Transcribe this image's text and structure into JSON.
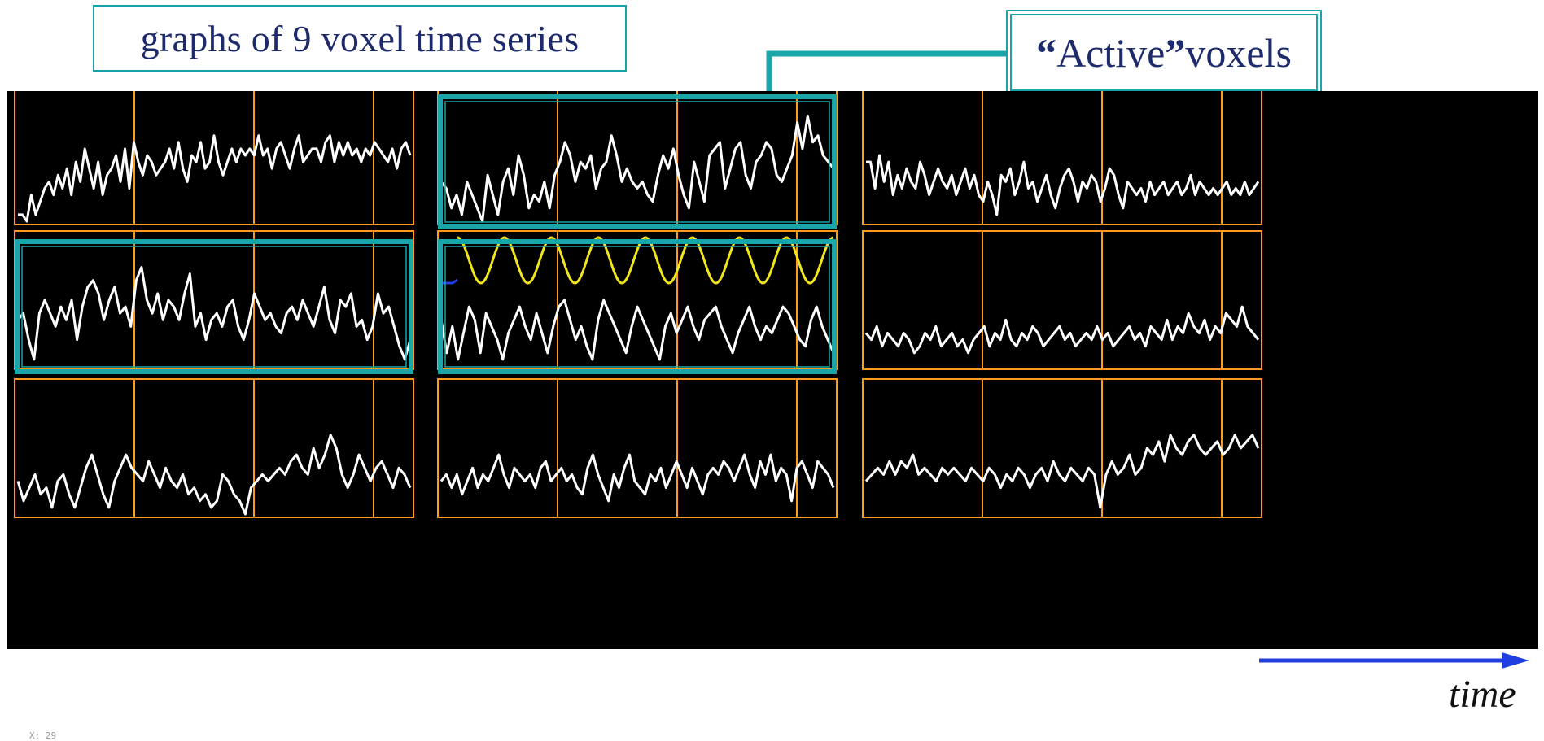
{
  "title": "graphs of 9 voxel time series",
  "active_label": {
    "open_quote": "“",
    "word": "Active",
    "close_quote": "”",
    "rest": " voxels"
  },
  "time_label": "time",
  "x_readout": "X: 29",
  "colors": {
    "panel_bg": "#000000",
    "frame": "#ff9a1e",
    "trace": "#ffffff",
    "highlight": "#1aa6a8",
    "reference": "#f2e61b",
    "time_arrow": "#1f3fe0",
    "title_text": "#1d2a6b"
  },
  "chart_data": {
    "type": "line",
    "grid": "3x3",
    "active_voxels": [
      "r0c1",
      "r1c0",
      "r1c1"
    ],
    "reference_signal": {
      "voxel": "r1c1",
      "shape": "sinusoid",
      "cycles": 8
    },
    "voxels": [
      {
        "id": "r0c0",
        "values": [
          0.05,
          0.05,
          0.0,
          0.2,
          0.05,
          0.15,
          0.25,
          0.3,
          0.2,
          0.35,
          0.25,
          0.4,
          0.2,
          0.45,
          0.3,
          0.55,
          0.4,
          0.25,
          0.45,
          0.2,
          0.35,
          0.4,
          0.5,
          0.3,
          0.55,
          0.25,
          0.6,
          0.45,
          0.35,
          0.5,
          0.45,
          0.35,
          0.4,
          0.45,
          0.55,
          0.4,
          0.6,
          0.4,
          0.3,
          0.5,
          0.45,
          0.6,
          0.4,
          0.45,
          0.65,
          0.45,
          0.35,
          0.45,
          0.55,
          0.45,
          0.55,
          0.5,
          0.55,
          0.5,
          0.65,
          0.5,
          0.55,
          0.4,
          0.55,
          0.6,
          0.5,
          0.4,
          0.55,
          0.65,
          0.45,
          0.5,
          0.55,
          0.55,
          0.45,
          0.6,
          0.65,
          0.45,
          0.6,
          0.5,
          0.6,
          0.5,
          0.55,
          0.45,
          0.55,
          0.5,
          0.6,
          0.55,
          0.5,
          0.45,
          0.55,
          0.4,
          0.55,
          0.6,
          0.5
        ]
      },
      {
        "id": "r0c1",
        "values": [
          0.3,
          0.25,
          0.1,
          0.2,
          0.05,
          0.3,
          0.2,
          0.1,
          0.0,
          0.35,
          0.2,
          0.05,
          0.3,
          0.4,
          0.2,
          0.5,
          0.35,
          0.1,
          0.2,
          0.15,
          0.3,
          0.1,
          0.35,
          0.45,
          0.6,
          0.5,
          0.3,
          0.45,
          0.4,
          0.5,
          0.25,
          0.4,
          0.45,
          0.65,
          0.5,
          0.3,
          0.4,
          0.3,
          0.25,
          0.3,
          0.2,
          0.15,
          0.35,
          0.5,
          0.4,
          0.55,
          0.35,
          0.2,
          0.1,
          0.45,
          0.3,
          0.15,
          0.5,
          0.55,
          0.6,
          0.25,
          0.4,
          0.55,
          0.6,
          0.35,
          0.25,
          0.45,
          0.5,
          0.6,
          0.55,
          0.35,
          0.3,
          0.4,
          0.5,
          0.75,
          0.55,
          0.8,
          0.6,
          0.65,
          0.5,
          0.45,
          0.4
        ]
      },
      {
        "id": "r0c2",
        "values": [
          0.45,
          0.45,
          0.25,
          0.5,
          0.3,
          0.45,
          0.2,
          0.35,
          0.25,
          0.4,
          0.3,
          0.25,
          0.45,
          0.35,
          0.2,
          0.3,
          0.4,
          0.3,
          0.25,
          0.35,
          0.2,
          0.3,
          0.4,
          0.25,
          0.35,
          0.2,
          0.15,
          0.3,
          0.2,
          0.05,
          0.35,
          0.3,
          0.4,
          0.2,
          0.3,
          0.45,
          0.25,
          0.3,
          0.15,
          0.25,
          0.35,
          0.2,
          0.1,
          0.25,
          0.35,
          0.4,
          0.3,
          0.15,
          0.3,
          0.25,
          0.35,
          0.3,
          0.15,
          0.25,
          0.4,
          0.35,
          0.2,
          0.1,
          0.3,
          0.25,
          0.2,
          0.25,
          0.15,
          0.3,
          0.2,
          0.25,
          0.3,
          0.2,
          0.25,
          0.3,
          0.2,
          0.25,
          0.35,
          0.2,
          0.3,
          0.25,
          0.2,
          0.25,
          0.2,
          0.25,
          0.3,
          0.2,
          0.25,
          0.2,
          0.3,
          0.2,
          0.25,
          0.3
        ]
      },
      {
        "id": "r1c0",
        "values": [
          0.35,
          0.4,
          0.2,
          0.05,
          0.4,
          0.5,
          0.4,
          0.3,
          0.45,
          0.35,
          0.5,
          0.2,
          0.45,
          0.6,
          0.65,
          0.55,
          0.35,
          0.5,
          0.6,
          0.4,
          0.45,
          0.3,
          0.65,
          0.75,
          0.5,
          0.4,
          0.55,
          0.35,
          0.5,
          0.45,
          0.35,
          0.55,
          0.7,
          0.3,
          0.4,
          0.2,
          0.35,
          0.4,
          0.3,
          0.45,
          0.5,
          0.3,
          0.2,
          0.35,
          0.55,
          0.45,
          0.35,
          0.4,
          0.3,
          0.25,
          0.4,
          0.45,
          0.35,
          0.5,
          0.4,
          0.3,
          0.45,
          0.6,
          0.35,
          0.25,
          0.5,
          0.45,
          0.55,
          0.3,
          0.35,
          0.2,
          0.3,
          0.55,
          0.4,
          0.45,
          0.3,
          0.15,
          0.05,
          0.2
        ]
      },
      {
        "id": "r1c1",
        "values": [
          0.35,
          0.1,
          0.3,
          0.05,
          0.25,
          0.45,
          0.35,
          0.1,
          0.4,
          0.3,
          0.2,
          0.05,
          0.25,
          0.35,
          0.45,
          0.3,
          0.2,
          0.4,
          0.25,
          0.1,
          0.3,
          0.45,
          0.5,
          0.35,
          0.2,
          0.3,
          0.15,
          0.05,
          0.35,
          0.5,
          0.4,
          0.3,
          0.2,
          0.1,
          0.3,
          0.45,
          0.35,
          0.25,
          0.15,
          0.05,
          0.3,
          0.4,
          0.25,
          0.35,
          0.45,
          0.3,
          0.2,
          0.35,
          0.4,
          0.45,
          0.3,
          0.2,
          0.1,
          0.25,
          0.35,
          0.45,
          0.3,
          0.2,
          0.3,
          0.25,
          0.35,
          0.45,
          0.4,
          0.3,
          0.2,
          0.15,
          0.35,
          0.45,
          0.3,
          0.2,
          0.1
        ]
      },
      {
        "id": "r1c2",
        "values": [
          0.25,
          0.2,
          0.3,
          0.15,
          0.25,
          0.2,
          0.15,
          0.25,
          0.2,
          0.1,
          0.15,
          0.25,
          0.2,
          0.3,
          0.15,
          0.2,
          0.25,
          0.15,
          0.2,
          0.1,
          0.2,
          0.25,
          0.3,
          0.15,
          0.25,
          0.2,
          0.35,
          0.2,
          0.15,
          0.25,
          0.2,
          0.3,
          0.25,
          0.15,
          0.2,
          0.25,
          0.3,
          0.2,
          0.25,
          0.15,
          0.2,
          0.25,
          0.2,
          0.3,
          0.2,
          0.25,
          0.15,
          0.2,
          0.25,
          0.3,
          0.2,
          0.25,
          0.15,
          0.3,
          0.25,
          0.2,
          0.35,
          0.2,
          0.3,
          0.25,
          0.4,
          0.3,
          0.25,
          0.35,
          0.2,
          0.3,
          0.25,
          0.4,
          0.35,
          0.3,
          0.45,
          0.3,
          0.25,
          0.2
        ]
      },
      {
        "id": "r2c0",
        "values": [
          0.25,
          0.1,
          0.2,
          0.3,
          0.15,
          0.2,
          0.05,
          0.25,
          0.3,
          0.15,
          0.05,
          0.2,
          0.35,
          0.45,
          0.3,
          0.15,
          0.05,
          0.25,
          0.35,
          0.45,
          0.35,
          0.3,
          0.25,
          0.4,
          0.3,
          0.2,
          0.35,
          0.25,
          0.2,
          0.3,
          0.15,
          0.2,
          0.1,
          0.15,
          0.05,
          0.1,
          0.3,
          0.25,
          0.15,
          0.1,
          0.0,
          0.2,
          0.25,
          0.3,
          0.25,
          0.3,
          0.35,
          0.3,
          0.4,
          0.45,
          0.35,
          0.3,
          0.5,
          0.35,
          0.45,
          0.6,
          0.5,
          0.3,
          0.2,
          0.3,
          0.45,
          0.35,
          0.25,
          0.35,
          0.4,
          0.3,
          0.2,
          0.35,
          0.3,
          0.2
        ]
      },
      {
        "id": "r2c1",
        "values": [
          0.25,
          0.3,
          0.2,
          0.3,
          0.15,
          0.25,
          0.35,
          0.2,
          0.3,
          0.25,
          0.35,
          0.45,
          0.3,
          0.2,
          0.35,
          0.3,
          0.25,
          0.3,
          0.2,
          0.35,
          0.4,
          0.25,
          0.3,
          0.35,
          0.25,
          0.3,
          0.2,
          0.15,
          0.35,
          0.45,
          0.3,
          0.2,
          0.1,
          0.3,
          0.2,
          0.35,
          0.45,
          0.25,
          0.2,
          0.15,
          0.3,
          0.25,
          0.35,
          0.2,
          0.3,
          0.4,
          0.3,
          0.2,
          0.35,
          0.25,
          0.15,
          0.3,
          0.35,
          0.3,
          0.4,
          0.35,
          0.25,
          0.35,
          0.45,
          0.3,
          0.2,
          0.4,
          0.3,
          0.45,
          0.25,
          0.35,
          0.3,
          0.1,
          0.35,
          0.4,
          0.3,
          0.2,
          0.4,
          0.35,
          0.3,
          0.2
        ]
      },
      {
        "id": "r2c2",
        "values": [
          0.25,
          0.3,
          0.35,
          0.3,
          0.4,
          0.3,
          0.4,
          0.35,
          0.45,
          0.3,
          0.35,
          0.3,
          0.25,
          0.35,
          0.3,
          0.35,
          0.3,
          0.25,
          0.35,
          0.3,
          0.25,
          0.35,
          0.3,
          0.2,
          0.3,
          0.25,
          0.35,
          0.3,
          0.2,
          0.3,
          0.35,
          0.25,
          0.4,
          0.3,
          0.25,
          0.35,
          0.3,
          0.25,
          0.35,
          0.3,
          0.05,
          0.3,
          0.4,
          0.3,
          0.35,
          0.45,
          0.3,
          0.35,
          0.5,
          0.45,
          0.55,
          0.4,
          0.6,
          0.5,
          0.45,
          0.55,
          0.6,
          0.5,
          0.45,
          0.5,
          0.55,
          0.45,
          0.5,
          0.6,
          0.5,
          0.55,
          0.6,
          0.5
        ]
      }
    ]
  }
}
